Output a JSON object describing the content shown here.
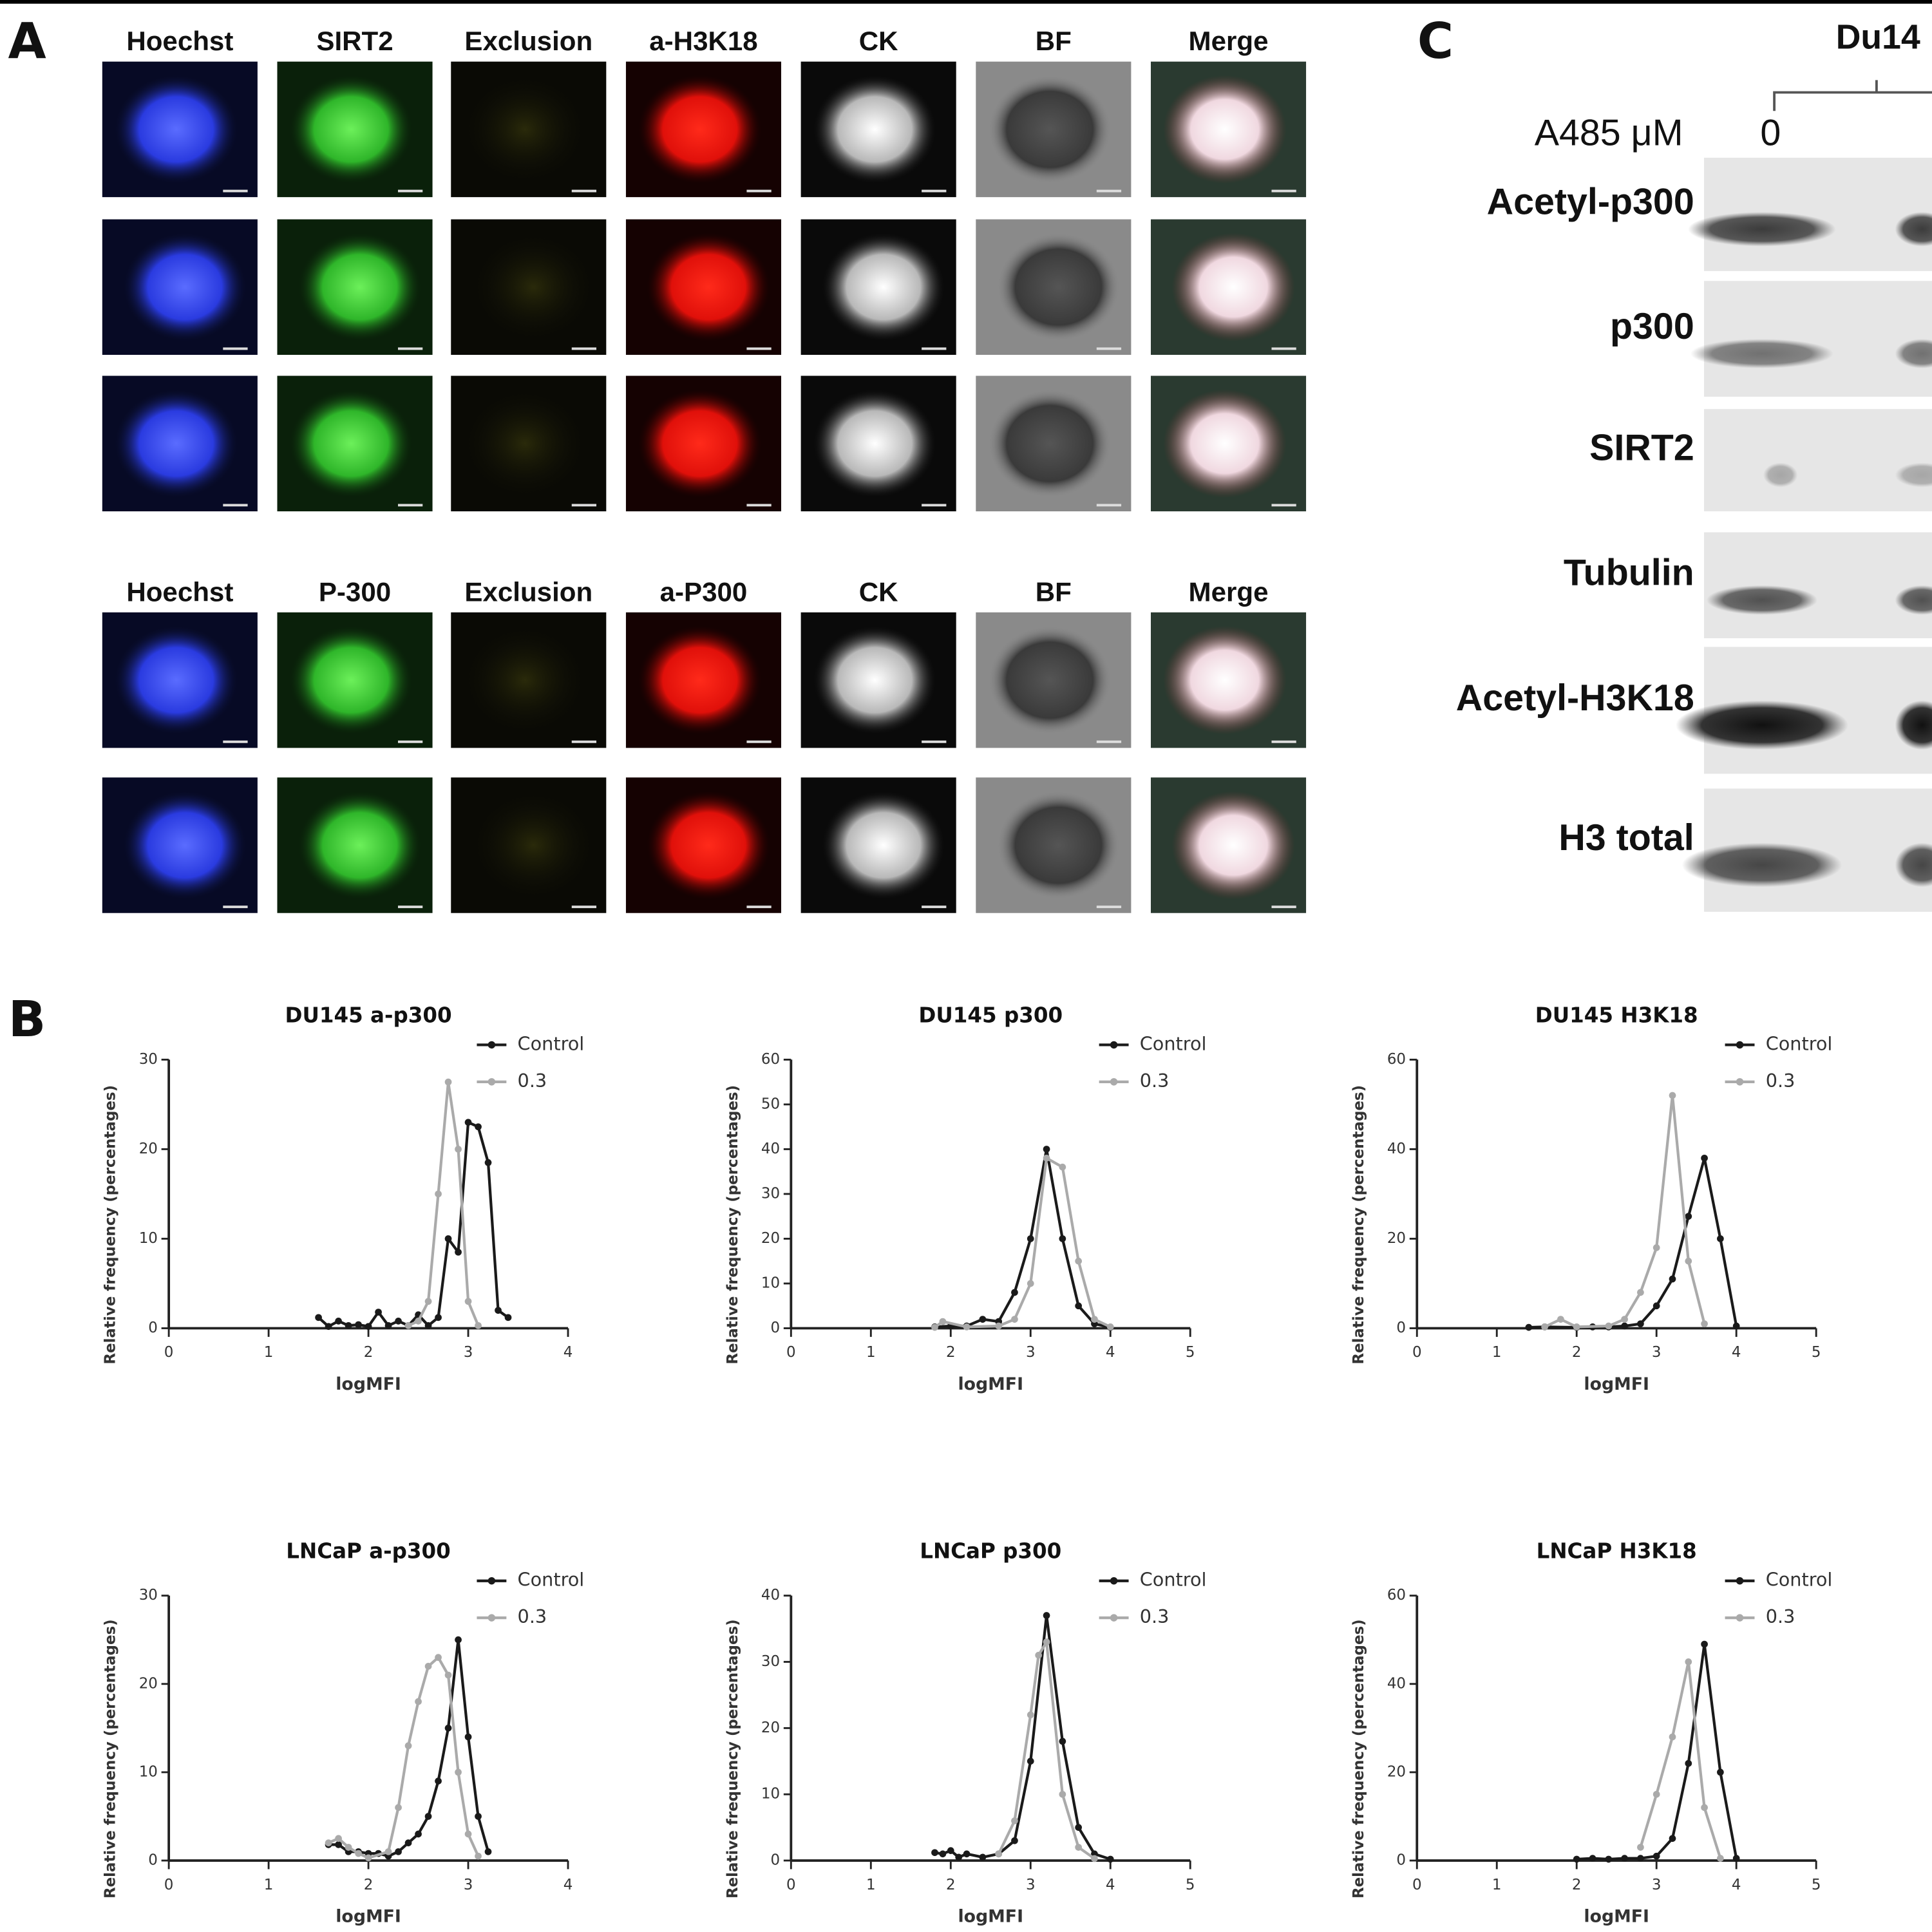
{
  "panel_labels": [
    "A",
    "B",
    "C"
  ],
  "panel_a": {
    "header_rows": [
      [
        "Hoechst",
        "SIRT2",
        "Exclusion",
        "a-H3K18",
        "CK",
        "BF",
        "Merge"
      ],
      [
        "Hoechst",
        "P-300",
        "Exclusion",
        "a-P300",
        "CK",
        "BF",
        "Merge"
      ]
    ]
  },
  "chart_data": [
    {
      "type": "line",
      "title": "DU145 a-p300",
      "x_label": "logMFI",
      "y_label": "Relative frequency (percentages)",
      "xlim": [
        0,
        4
      ],
      "xticks": [
        0,
        1,
        2,
        3,
        4
      ],
      "ylim": [
        0,
        30
      ],
      "yticks": [
        0,
        10,
        20,
        30
      ],
      "legend": "top-right",
      "series": [
        {
          "name": "Control",
          "color": "#1a1a1a",
          "x": [
            1.5,
            1.6,
            1.7,
            1.8,
            1.9,
            2.0,
            2.1,
            2.2,
            2.3,
            2.4,
            2.5,
            2.6,
            2.7,
            2.8,
            2.9,
            3.0,
            3.1,
            3.2,
            3.3,
            3.4
          ],
          "values": [
            1.2,
            0.2,
            0.8,
            0.3,
            0.4,
            0.2,
            1.8,
            0.3,
            0.8,
            0.3,
            1.5,
            0.3,
            1.2,
            10,
            8.5,
            23,
            22.5,
            18.5,
            2,
            1.2
          ]
        },
        {
          "name": "0.3",
          "color": "#aaaaaa",
          "x": [
            2.4,
            2.5,
            2.6,
            2.7,
            2.8,
            2.9,
            3.0,
            3.1
          ],
          "values": [
            0.3,
            0.8,
            3,
            15,
            27.5,
            20,
            3,
            0.3
          ]
        }
      ]
    },
    {
      "type": "line",
      "title": "DU145 p300",
      "x_label": "logMFI",
      "y_label": "Relative frequency (percentages)",
      "xlim": [
        0,
        5
      ],
      "xticks": [
        0,
        1,
        2,
        3,
        4,
        5
      ],
      "ylim": [
        0,
        60
      ],
      "yticks": [
        0,
        10,
        20,
        30,
        40,
        50,
        60
      ],
      "legend": "top-right",
      "series": [
        {
          "name": "Control",
          "color": "#1a1a1a",
          "x": [
            1.8,
            2.0,
            2.2,
            2.4,
            2.6,
            2.8,
            3.0,
            3.2,
            3.4,
            3.6,
            3.8,
            4.0
          ],
          "values": [
            0.3,
            0.5,
            0.5,
            2,
            1.5,
            8,
            20,
            40,
            20,
            5,
            1,
            0.2
          ]
        },
        {
          "name": "0.3",
          "color": "#aaaaaa",
          "x": [
            1.8,
            1.9,
            2.2,
            2.6,
            2.8,
            3.0,
            3.2,
            3.4,
            3.6,
            3.8,
            4.0
          ],
          "values": [
            0.2,
            1.5,
            0.3,
            0.5,
            2,
            10,
            38,
            36,
            15,
            2,
            0.3
          ]
        }
      ]
    },
    {
      "type": "line",
      "title": "DU145 H3K18",
      "x_label": "logMFI",
      "y_label": "Relative frequency (percentages)",
      "xlim": [
        0,
        5
      ],
      "xticks": [
        0,
        1,
        2,
        3,
        4,
        5
      ],
      "ylim": [
        0,
        60
      ],
      "yticks": [
        0,
        20,
        40,
        60
      ],
      "legend": "top-right",
      "series": [
        {
          "name": "Control",
          "color": "#1a1a1a",
          "x": [
            1.4,
            1.6,
            2.0,
            2.2,
            2.4,
            2.6,
            2.8,
            3.0,
            3.2,
            3.4,
            3.6,
            3.8,
            4.0
          ],
          "values": [
            0.2,
            0.3,
            0.2,
            0.3,
            0.3,
            0.5,
            1,
            5,
            11,
            25,
            38,
            20,
            0.5
          ]
        },
        {
          "name": "0.3",
          "color": "#aaaaaa",
          "x": [
            1.6,
            1.8,
            2.0,
            2.4,
            2.6,
            2.8,
            3.0,
            3.2,
            3.4,
            3.6
          ],
          "values": [
            0.3,
            2,
            0.3,
            0.5,
            2,
            8,
            18,
            52,
            15,
            1
          ]
        }
      ]
    },
    {
      "type": "line",
      "title": "LNCaP a-p300",
      "x_label": "logMFI",
      "y_label": "Relative frequency (percentages)",
      "xlim": [
        0,
        4
      ],
      "xticks": [
        0,
        1,
        2,
        3,
        4
      ],
      "ylim": [
        0,
        30
      ],
      "yticks": [
        0,
        10,
        20,
        30
      ],
      "legend": "top-right",
      "series": [
        {
          "name": "Control",
          "color": "#1a1a1a",
          "x": [
            1.6,
            1.7,
            1.8,
            1.9,
            2.0,
            2.1,
            2.2,
            2.3,
            2.4,
            2.5,
            2.6,
            2.7,
            2.8,
            2.9,
            3.0,
            3.1,
            3.2
          ],
          "values": [
            1.8,
            1.8,
            1,
            1,
            0.8,
            0.8,
            0.5,
            1,
            2,
            3,
            5,
            9,
            15,
            25,
            14,
            5,
            1
          ]
        },
        {
          "name": "0.3",
          "color": "#aaaaaa",
          "x": [
            1.6,
            1.7,
            1.8,
            1.9,
            2.0,
            2.2,
            2.3,
            2.4,
            2.5,
            2.6,
            2.7,
            2.8,
            2.9,
            3.0,
            3.1
          ],
          "values": [
            2,
            2.5,
            1.5,
            0.8,
            0.3,
            1,
            6,
            13,
            18,
            22,
            23,
            21,
            10,
            3,
            0.5
          ]
        }
      ]
    },
    {
      "type": "line",
      "title": "LNCaP p300",
      "x_label": "logMFI",
      "y_label": "Relative frequency (percentages)",
      "xlim": [
        0,
        5
      ],
      "xticks": [
        0,
        1,
        2,
        3,
        4,
        5
      ],
      "ylim": [
        0,
        40
      ],
      "yticks": [
        0,
        10,
        20,
        30,
        40
      ],
      "legend": "top-right",
      "series": [
        {
          "name": "Control",
          "color": "#1a1a1a",
          "x": [
            1.8,
            1.9,
            2.0,
            2.1,
            2.2,
            2.4,
            2.6,
            2.8,
            3.0,
            3.2,
            3.4,
            3.6,
            3.8,
            4.0
          ],
          "values": [
            1.2,
            1,
            1.5,
            0.5,
            1,
            0.5,
            1,
            3,
            15,
            37,
            18,
            5,
            1,
            0.2
          ]
        },
        {
          "name": "0.3",
          "color": "#aaaaaa",
          "x": [
            2.6,
            2.8,
            3.0,
            3.1,
            3.2,
            3.4,
            3.6,
            3.8
          ],
          "values": [
            1,
            6,
            22,
            31,
            33,
            10,
            2,
            0.3
          ]
        }
      ]
    },
    {
      "type": "line",
      "title": "LNCaP H3K18",
      "x_label": "logMFI",
      "y_label": "Relative frequency (percentages)",
      "xlim": [
        0,
        5
      ],
      "xticks": [
        0,
        1,
        2,
        3,
        4,
        5
      ],
      "ylim": [
        0,
        60
      ],
      "yticks": [
        0,
        20,
        40,
        60
      ],
      "legend": "top-right",
      "series": [
        {
          "name": "Control",
          "color": "#1a1a1a",
          "x": [
            2.0,
            2.2,
            2.4,
            2.6,
            2.8,
            3.0,
            3.2,
            3.4,
            3.6,
            3.8,
            4.0
          ],
          "values": [
            0.3,
            0.5,
            0.3,
            0.5,
            0.5,
            1,
            5,
            22,
            49,
            20,
            0.5
          ]
        },
        {
          "name": "0.3",
          "color": "#aaaaaa",
          "x": [
            2.8,
            3.0,
            3.2,
            3.4,
            3.6,
            3.8
          ],
          "values": [
            3,
            15,
            28,
            45,
            12,
            0.5
          ]
        }
      ]
    }
  ],
  "panel_c": {
    "group_label": "Du14",
    "treatment_label": "A485 μM",
    "dose_labels": [
      "0"
    ],
    "rows": [
      "Acetyl-p300",
      "p300",
      "SIRT2",
      "Tubulin",
      "Acetyl-H3K18",
      "H3 total"
    ]
  }
}
